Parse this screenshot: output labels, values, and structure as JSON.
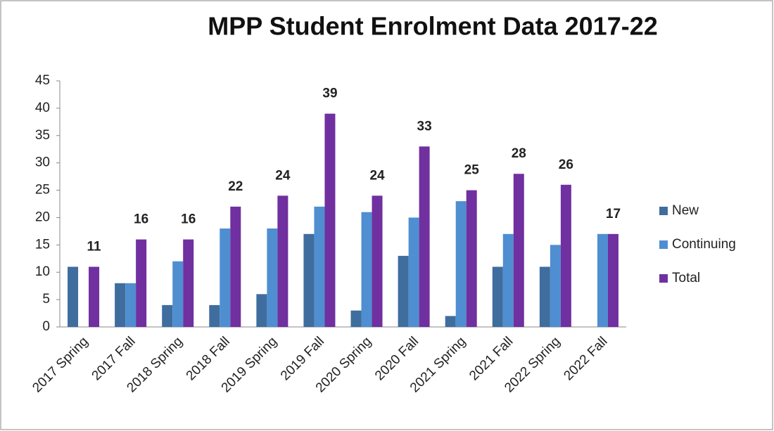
{
  "chart_data": {
    "type": "bar",
    "title": "MPP Student Enrolment Data 2017-22",
    "categories": [
      "2017 Spring",
      "2017 Fall",
      "2018 Spring",
      "2018 Fall",
      "2019 Spring",
      "2019 Fall",
      "2020 Spring",
      "2020 Fall",
      "2021 Spring",
      "2021 Fall",
      "2022 Spring",
      "2022 Fall"
    ],
    "series": [
      {
        "name": "New",
        "color": "#3f6d9e",
        "values": [
          11,
          8,
          4,
          4,
          6,
          17,
          3,
          13,
          2,
          11,
          11,
          0
        ]
      },
      {
        "name": "Continuing",
        "color": "#4f8ed0",
        "values": [
          0,
          8,
          12,
          18,
          18,
          22,
          21,
          20,
          23,
          17,
          15,
          17
        ]
      },
      {
        "name": "Total",
        "color": "#7030a0",
        "values": [
          11,
          16,
          16,
          22,
          24,
          39,
          24,
          33,
          25,
          28,
          26,
          17
        ],
        "show_labels": true
      }
    ],
    "ylim": [
      0,
      45
    ],
    "yticks": [
      0,
      5,
      10,
      15,
      20,
      25,
      30,
      35,
      40,
      45
    ],
    "grid": false,
    "legend": "right"
  }
}
